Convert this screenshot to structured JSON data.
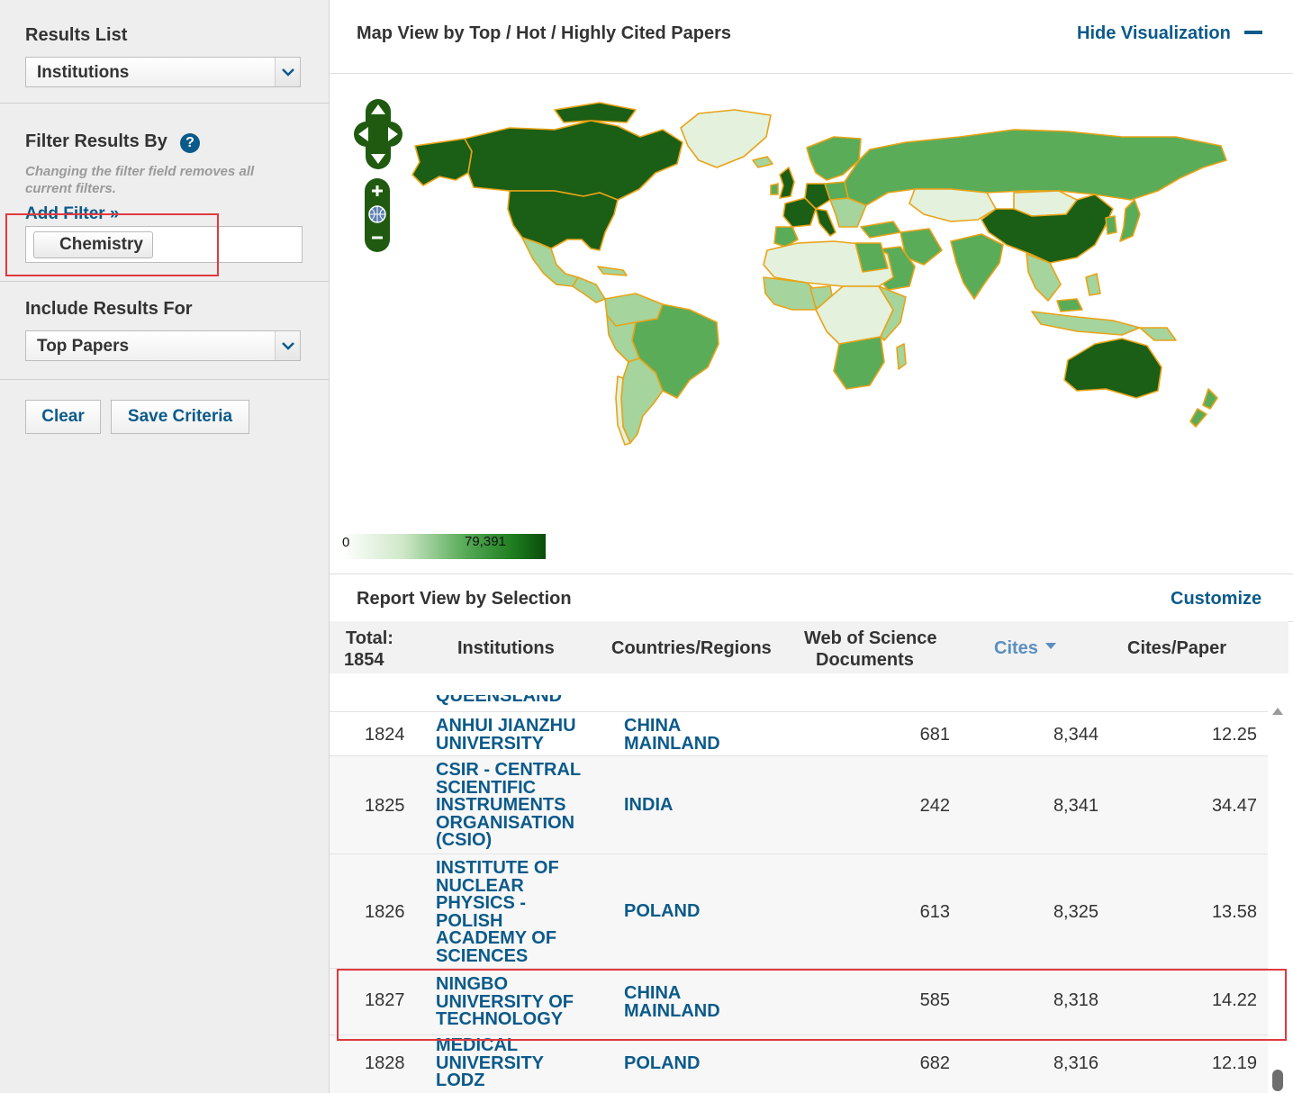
{
  "sidebar": {
    "results_list_label": "Results List",
    "results_list_value": "Institutions",
    "filter_heading": "Filter Results By",
    "help_glyph": "?",
    "filter_hint": "Changing the filter field removes all current filters.",
    "add_filter_label": "Add Filter »",
    "active_filter": "Chemistry",
    "include_label": "Include Results For",
    "include_value": "Top Papers",
    "clear_label": "Clear",
    "save_label": "Save Criteria"
  },
  "map_panel": {
    "title": "Map View by Top / Hot / Highly Cited Papers",
    "hide_label": "Hide Visualization",
    "hide_icon": "minus-icon",
    "legend_min": "0",
    "legend_max": "79,391",
    "colors": {
      "border": "#e8a317",
      "darkest": "#1b5e15",
      "mid": "#5aac58",
      "light": "#a5d49c",
      "lightest": "#e3f1dd",
      "ocean": "#ffffff"
    }
  },
  "report_panel": {
    "title": "Report View by Selection",
    "customize_label": "Customize",
    "total_label": "Total:",
    "total_value": "1854",
    "columns": {
      "institutions": "Institutions",
      "countries": "Countries/Regions",
      "docs_line1": "Web of Science",
      "docs_line2": "Documents",
      "cites": "Cites",
      "cites_per_paper": "Cites/Paper"
    },
    "partial_row_top": "QUEENSLAND",
    "rows": [
      {
        "rank": "1824",
        "institution_lines": [
          "ANHUI JIANZHU",
          "UNIVERSITY"
        ],
        "country_lines": [
          "CHINA",
          "MAINLAND"
        ],
        "docs": "681",
        "cites": "8,344",
        "cites_per_paper": "12.25"
      },
      {
        "rank": "1825",
        "institution_lines": [
          "CSIR - CENTRAL",
          "SCIENTIFIC",
          "INSTRUMENTS",
          "ORGANISATION",
          "(CSIO)"
        ],
        "country_lines": [
          "INDIA"
        ],
        "docs": "242",
        "cites": "8,341",
        "cites_per_paper": "34.47"
      },
      {
        "rank": "1826",
        "institution_lines": [
          "INSTITUTE OF",
          "NUCLEAR",
          "PHYSICS -",
          "POLISH",
          "ACADEMY OF",
          "SCIENCES"
        ],
        "country_lines": [
          "POLAND"
        ],
        "docs": "613",
        "cites": "8,325",
        "cites_per_paper": "13.58"
      },
      {
        "rank": "1827",
        "institution_lines": [
          "NINGBO",
          "UNIVERSITY OF",
          "TECHNOLOGY"
        ],
        "country_lines": [
          "CHINA",
          "MAINLAND"
        ],
        "docs": "585",
        "cites": "8,318",
        "cites_per_paper": "14.22"
      },
      {
        "rank": "1828",
        "institution_lines": [
          "MEDICAL",
          "UNIVERSITY",
          "LODZ"
        ],
        "country_lines": [
          "POLAND"
        ],
        "docs": "682",
        "cites": "8,316",
        "cites_per_paper": "12.19"
      }
    ]
  }
}
